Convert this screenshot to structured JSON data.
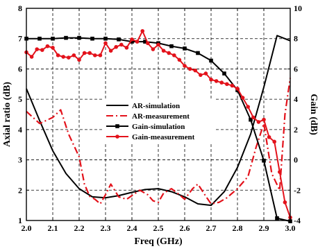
{
  "chart_data": {
    "type": "line",
    "xlabel": "Freq (GHz)",
    "ylabel_left": "Axial ratio (dB)",
    "ylabel_right": "Gain (dB)",
    "xlim": [
      2.0,
      3.0
    ],
    "ylim_left": [
      1,
      8
    ],
    "ylim_right": [
      -4,
      10
    ],
    "x_ticks": [
      "2.0",
      "2.1",
      "2.2",
      "2.3",
      "2.4",
      "2.5",
      "2.6",
      "2.7",
      "2.8",
      "2.9",
      "3.0"
    ],
    "y_left_ticks": [
      "1",
      "2",
      "3",
      "4",
      "5",
      "6",
      "7",
      "8"
    ],
    "y_right_ticks": [
      "-4",
      "-2",
      "0",
      "2",
      "4",
      "6",
      "8",
      "10"
    ],
    "grid": true,
    "legend_position": "center-left",
    "series": [
      {
        "name": "AR-simulation",
        "axis": "left",
        "color": "#000000",
        "style": "solid",
        "marker": "none",
        "x": [
          2.0,
          2.05,
          2.1,
          2.15,
          2.2,
          2.25,
          2.3,
          2.35,
          2.4,
          2.45,
          2.5,
          2.55,
          2.6,
          2.65,
          2.7,
          2.75,
          2.8,
          2.85,
          2.9,
          2.95,
          3.0
        ],
        "y": [
          5.35,
          4.3,
          3.3,
          2.55,
          2.05,
          1.78,
          1.75,
          1.82,
          1.93,
          2.02,
          2.05,
          1.95,
          1.78,
          1.55,
          1.5,
          1.95,
          2.75,
          3.85,
          5.4,
          7.1,
          6.93
        ]
      },
      {
        "name": "AR-measurement",
        "axis": "left",
        "color": "#e3121b",
        "style": "dashdot",
        "marker": "none",
        "x": [
          2.0,
          2.05,
          2.1,
          2.13,
          2.16,
          2.2,
          2.22,
          2.24,
          2.26,
          2.28,
          2.3,
          2.32,
          2.35,
          2.38,
          2.4,
          2.43,
          2.46,
          2.48,
          2.5,
          2.52,
          2.55,
          2.58,
          2.6,
          2.63,
          2.65,
          2.68,
          2.7,
          2.73,
          2.76,
          2.8,
          2.84,
          2.87,
          2.9,
          2.93,
          2.96,
          2.98,
          3.0
        ],
        "y": [
          4.6,
          4.2,
          4.4,
          4.65,
          3.85,
          3.1,
          2.2,
          1.8,
          1.7,
          1.55,
          1.85,
          2.2,
          1.78,
          1.7,
          1.82,
          2.0,
          1.85,
          1.65,
          1.6,
          1.9,
          2.05,
          1.85,
          1.7,
          2.05,
          2.2,
          1.8,
          1.55,
          1.6,
          1.75,
          2.05,
          2.45,
          3.4,
          4.2,
          2.55,
          2.0,
          4.5,
          5.7
        ]
      },
      {
        "name": "Gain-simulation",
        "axis": "right",
        "color": "#000000",
        "style": "solid",
        "marker": "square",
        "x": [
          2.0,
          2.05,
          2.1,
          2.15,
          2.2,
          2.25,
          2.3,
          2.35,
          2.4,
          2.45,
          2.5,
          2.55,
          2.6,
          2.65,
          2.7,
          2.75,
          2.8,
          2.85,
          2.9,
          2.95,
          3.0
        ],
        "y": [
          8.0,
          8.0,
          8.0,
          8.05,
          8.05,
          8.0,
          8.0,
          7.95,
          7.8,
          7.8,
          7.7,
          7.5,
          7.35,
          7.05,
          6.55,
          5.7,
          4.6,
          2.65,
          -0.05,
          -3.85,
          -4.05
        ]
      },
      {
        "name": "Gain-measurement",
        "axis": "right",
        "color": "#e3121b",
        "style": "solid",
        "marker": "circle",
        "x": [
          2.0,
          2.02,
          2.04,
          2.06,
          2.08,
          2.1,
          2.12,
          2.14,
          2.16,
          2.18,
          2.2,
          2.22,
          2.24,
          2.26,
          2.28,
          2.3,
          2.32,
          2.34,
          2.36,
          2.38,
          2.4,
          2.42,
          2.44,
          2.46,
          2.48,
          2.5,
          2.52,
          2.54,
          2.56,
          2.58,
          2.6,
          2.62,
          2.64,
          2.66,
          2.68,
          2.7,
          2.72,
          2.74,
          2.76,
          2.78,
          2.8,
          2.82,
          2.84,
          2.86,
          2.88,
          2.9,
          2.92,
          2.94,
          2.96,
          2.98,
          3.0
        ],
        "y": [
          7.1,
          6.8,
          7.3,
          7.25,
          7.5,
          7.4,
          6.9,
          6.8,
          6.75,
          6.9,
          6.6,
          7.05,
          7.05,
          6.9,
          6.9,
          7.7,
          7.2,
          7.45,
          7.6,
          7.4,
          7.95,
          7.8,
          8.5,
          7.7,
          7.3,
          7.6,
          7.2,
          7.05,
          6.9,
          6.6,
          6.2,
          6.0,
          5.9,
          5.6,
          5.7,
          5.3,
          5.2,
          5.1,
          5.0,
          4.9,
          4.7,
          4.1,
          3.5,
          2.8,
          2.5,
          2.65,
          1.5,
          1.2,
          -0.8,
          -2.8,
          -3.8
        ]
      }
    ]
  }
}
